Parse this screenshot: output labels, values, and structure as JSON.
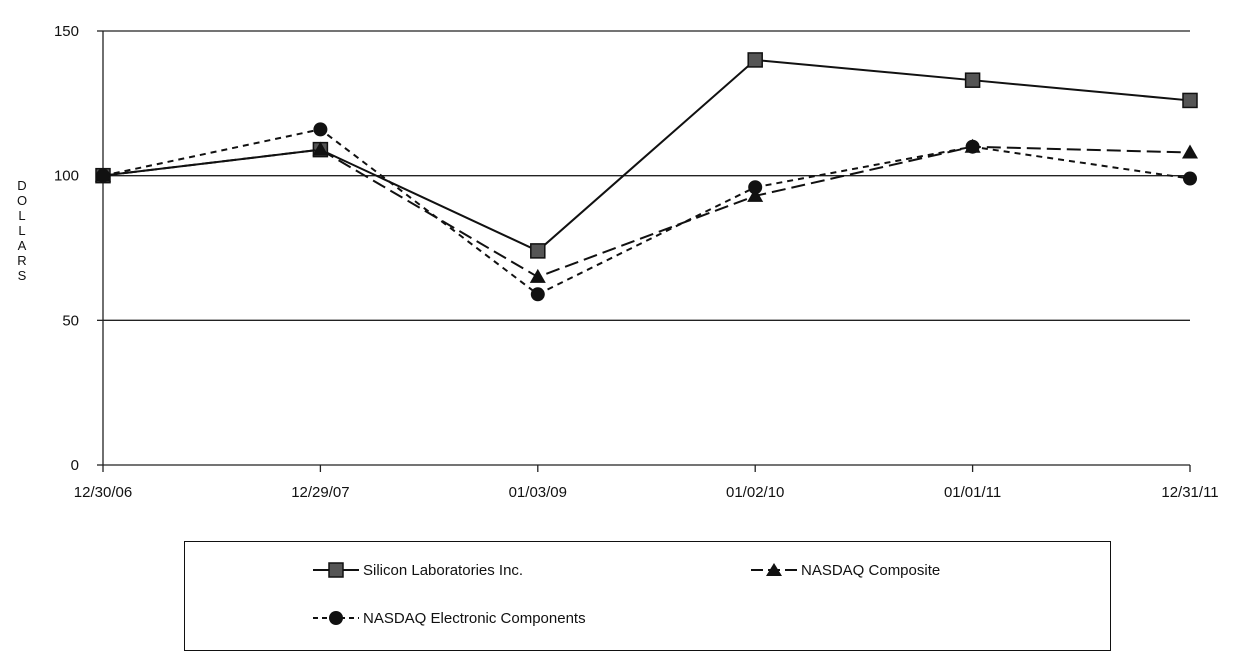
{
  "chart_data": {
    "type": "line",
    "title": "",
    "xlabel": "",
    "ylabel": "DOLLARS",
    "categories": [
      "12/30/06",
      "12/29/07",
      "01/03/09",
      "01/02/10",
      "01/01/11",
      "12/31/11"
    ],
    "ylim": [
      0,
      150
    ],
    "yticks": [
      0,
      50,
      100,
      150
    ],
    "grid": "horizontal",
    "legend": "bottom",
    "series": [
      {
        "name": "Silicon Laboratories Inc.",
        "values": [
          100,
          109,
          74,
          140,
          133,
          126
        ],
        "marker": "square",
        "dash": "solid",
        "color": "#111111"
      },
      {
        "name": "NASDAQ Composite",
        "values": [
          100,
          109,
          65,
          93,
          110,
          108
        ],
        "marker": "triangle",
        "dash": "long-dash",
        "color": "#111111"
      },
      {
        "name": "NASDAQ Electronic Components",
        "values": [
          100,
          116,
          59,
          96,
          110,
          99
        ],
        "marker": "circle",
        "dash": "short-dash",
        "color": "#111111"
      }
    ]
  }
}
